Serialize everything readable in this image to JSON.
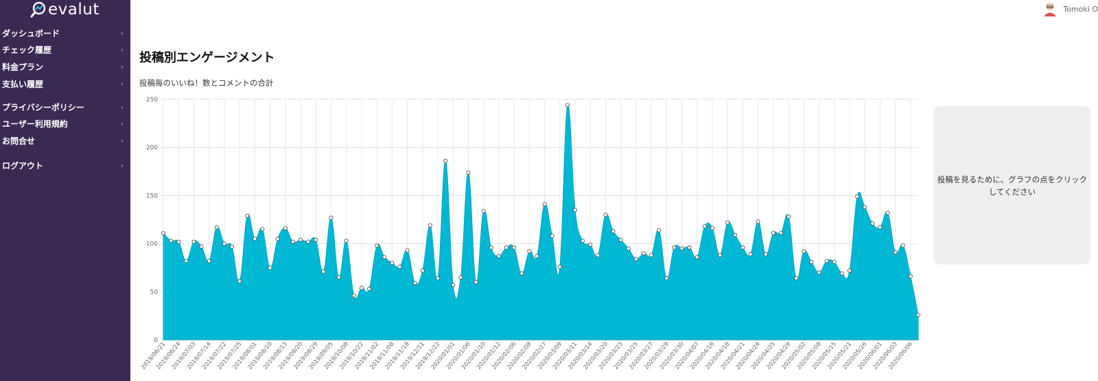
{
  "brand": {
    "name": "evalut",
    "logo_icon": "magnifier-chart-icon"
  },
  "sidebar": {
    "groups": [
      [
        {
          "label": "ダッシュボード",
          "icon": "chevron-right-icon"
        },
        {
          "label": "チェック履歴",
          "icon": "chevron-right-icon"
        },
        {
          "label": "料金プラン",
          "icon": "chevron-right-icon"
        },
        {
          "label": "支払い履歴",
          "icon": "chevron-right-icon"
        }
      ],
      [
        {
          "label": "プライバシーポリシー",
          "icon": "chevron-right-icon"
        },
        {
          "label": "ユーザー利用規約",
          "icon": "chevron-right-icon"
        },
        {
          "label": "お問合せ",
          "icon": "chevron-right-icon"
        }
      ],
      [
        {
          "label": "ログアウト",
          "icon": "chevron-right-icon"
        }
      ]
    ]
  },
  "topbar": {
    "user_name": "Tomoki O"
  },
  "main": {
    "title": "投稿別エンゲージメント",
    "subtitle": "投稿毎のいいね！数とコメントの合計",
    "hint": "投稿を見るために、グラフの点をクリックしてください"
  },
  "colors": {
    "sidebar": "#3a2a52",
    "area_fill": "#00b7d4",
    "point_fill": "#ffffff"
  },
  "chart_data": {
    "type": "area",
    "ylim": [
      0,
      250
    ],
    "yticks": [
      0,
      50,
      100,
      150,
      200,
      250
    ],
    "grid": true,
    "values": [
      111,
      103,
      102,
      82,
      102,
      97,
      82,
      117,
      100,
      97,
      61,
      129,
      105,
      115,
      75,
      105,
      116,
      102,
      104,
      102,
      104,
      71,
      127,
      65,
      103,
      46,
      54,
      53,
      98,
      86,
      80,
      76,
      93,
      59,
      72,
      119,
      64,
      186,
      57,
      65,
      174,
      60,
      134,
      96,
      87,
      96,
      96,
      69,
      92,
      87,
      141,
      108,
      76,
      244,
      135,
      103,
      99,
      88,
      130,
      113,
      104,
      95,
      84,
      90,
      88,
      114,
      64,
      96,
      95,
      96,
      86,
      118,
      116,
      88,
      122,
      109,
      96,
      89,
      123,
      89,
      111,
      111,
      128,
      64,
      92,
      81,
      70,
      82,
      81,
      69,
      72,
      149,
      138,
      121,
      117,
      132,
      91,
      98,
      66,
      26
    ],
    "x_labels": [
      "2019/06/21",
      "2019/06/24",
      "2019/07/03",
      "2019/07/14",
      "2019/07/22",
      "2019/07/25",
      "2019/08/01",
      "2019/08/10",
      "2019/08/13",
      "2019/08/20",
      "2019/08/29",
      "2019/09/05",
      "2019/10/08",
      "2019/10/22",
      "2019/11/02",
      "2019/11/08",
      "2019/11/18",
      "2019/12/11",
      "2019/12/22",
      "2020/01/01",
      "2020/01/06",
      "2020/01/10",
      "2020/01/12",
      "2020/02/06",
      "2020/02/08",
      "2020/02/27",
      "2020/03/09",
      "2020/03/11",
      "2020/03/14",
      "2020/03/20",
      "2020/03/23",
      "2020/03/25",
      "2020/03/27",
      "2020/03/29",
      "2020/03/30",
      "2020/04/07",
      "2020/04/16",
      "2020/04/18",
      "2020/04/21",
      "2020/04/24",
      "2020/04/25",
      "2020/04/29",
      "2020/05/02",
      "2020/05/08",
      "2020/05/15",
      "2020/05/21",
      "2020/05/26",
      "2020/06/01",
      "2020/06/03",
      "2020/06/06"
    ]
  }
}
